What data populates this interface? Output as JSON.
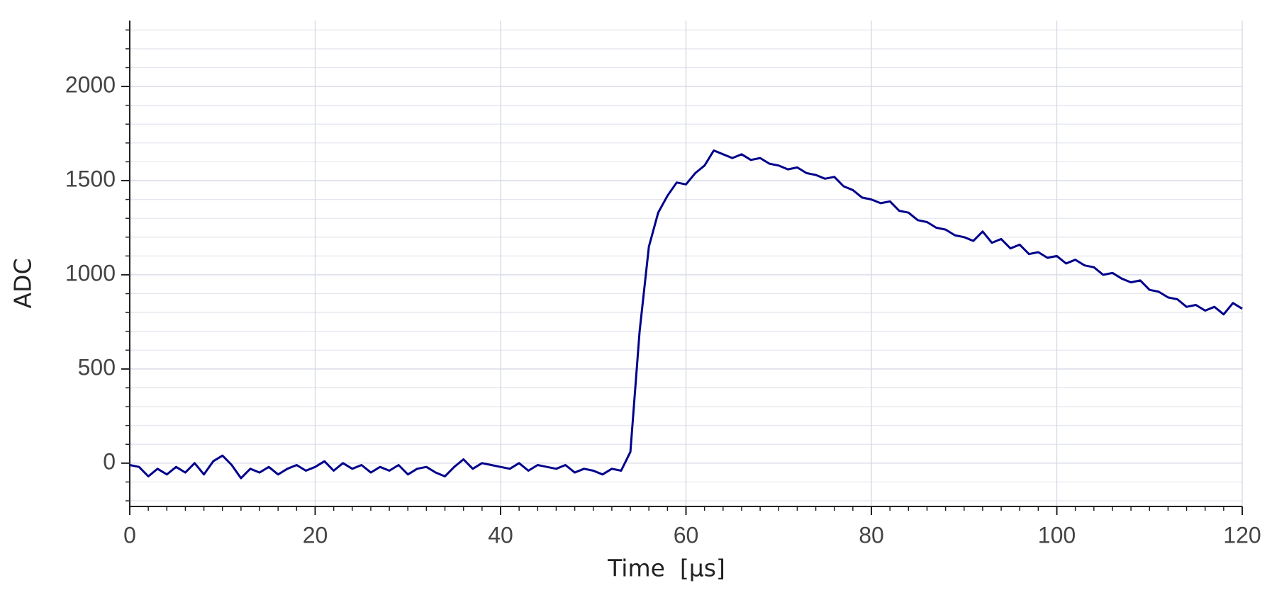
{
  "chart_data": {
    "type": "line",
    "xlabel": "Time  [μs]",
    "ylabel": "ADC",
    "x": [
      0,
      1,
      2,
      3,
      4,
      5,
      6,
      7,
      8,
      9,
      10,
      11,
      12,
      13,
      14,
      15,
      16,
      17,
      18,
      19,
      20,
      21,
      22,
      23,
      24,
      25,
      26,
      27,
      28,
      29,
      30,
      31,
      32,
      33,
      34,
      35,
      36,
      37,
      38,
      39,
      40,
      41,
      42,
      43,
      44,
      45,
      46,
      47,
      48,
      49,
      50,
      51,
      52,
      53,
      54,
      55,
      56,
      57,
      58,
      59,
      60,
      61,
      62,
      63,
      64,
      65,
      66,
      67,
      68,
      69,
      70,
      71,
      72,
      73,
      74,
      75,
      76,
      77,
      78,
      79,
      80,
      81,
      82,
      83,
      84,
      85,
      86,
      87,
      88,
      89,
      90,
      91,
      92,
      93,
      94,
      95,
      96,
      97,
      98,
      99,
      100,
      101,
      102,
      103,
      104,
      105,
      106,
      107,
      108,
      109,
      110,
      111,
      112,
      113,
      114,
      115,
      116,
      117,
      118,
      119,
      120
    ],
    "values": [
      -10,
      -20,
      -70,
      -30,
      -60,
      -20,
      -50,
      0,
      -60,
      10,
      40,
      -10,
      -80,
      -30,
      -50,
      -20,
      -60,
      -30,
      -10,
      -40,
      -20,
      10,
      -40,
      0,
      -30,
      -10,
      -50,
      -20,
      -40,
      -10,
      -60,
      -30,
      -20,
      -50,
      -70,
      -20,
      20,
      -30,
      0,
      -10,
      -20,
      -30,
      0,
      -40,
      -10,
      -20,
      -30,
      -10,
      -50,
      -30,
      -40,
      -60,
      -30,
      -40,
      60,
      700,
      1150,
      1330,
      1420,
      1490,
      1480,
      1540,
      1580,
      1660,
      1640,
      1620,
      1640,
      1610,
      1620,
      1590,
      1580,
      1560,
      1570,
      1540,
      1530,
      1510,
      1520,
      1470,
      1450,
      1410,
      1400,
      1380,
      1390,
      1340,
      1330,
      1290,
      1280,
      1250,
      1240,
      1210,
      1200,
      1180,
      1230,
      1170,
      1190,
      1140,
      1160,
      1110,
      1120,
      1090,
      1100,
      1060,
      1080,
      1050,
      1040,
      1000,
      1010,
      980,
      960,
      970,
      920,
      910,
      880,
      870,
      830,
      840,
      810,
      830,
      790,
      850,
      820
    ],
    "color": "#00008b",
    "xlim": [
      0,
      120
    ],
    "xticks": [
      0,
      20,
      40,
      60,
      80,
      100,
      120
    ],
    "ylim": [
      -230,
      2350
    ],
    "yticks": [
      0,
      500,
      1000,
      1500,
      2000
    ],
    "grid": true,
    "x_minor_step": 2,
    "y_minor_step": 100
  }
}
